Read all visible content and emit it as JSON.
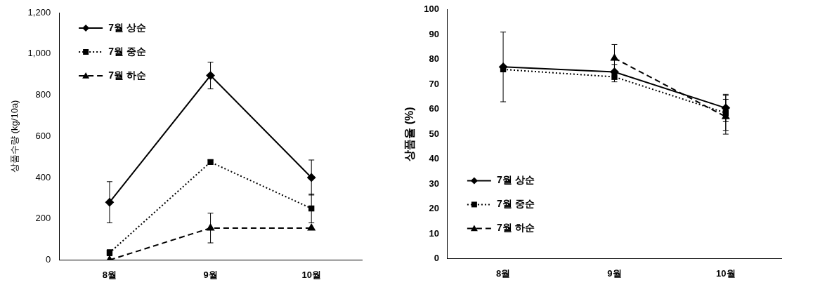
{
  "chart_data": [
    {
      "type": "line",
      "y_label": "상품수량 (kg/10a)",
      "categories": [
        "8월",
        "9월",
        "10월"
      ],
      "series": [
        {
          "name": "7월 상순",
          "color": "#000000",
          "marker": "diamond",
          "line_style": "solid",
          "values": [
            280,
            895,
            400
          ],
          "error": [
            100,
            65,
            85
          ]
        },
        {
          "name": "7월 중순",
          "color": "#000000",
          "marker": "square",
          "line_style": "dotted",
          "values": [
            35,
            475,
            250
          ],
          "error": [
            15,
            10,
            70
          ]
        },
        {
          "name": "7월 하순",
          "color": "#000000",
          "marker": "triangle",
          "line_style": "dashed",
          "values": [
            0,
            155,
            155
          ],
          "error": [
            null,
            72,
            null
          ]
        }
      ],
      "ylim": [
        0,
        1200
      ],
      "yticks": [
        0,
        200,
        400,
        600,
        800,
        {
          "value": 1000,
          "label": "1,000"
        },
        {
          "value": 1200,
          "label": "1,200"
        }
      ],
      "legend": "upper left",
      "grid": false
    },
    {
      "type": "line",
      "y_label": "상품율 (%)",
      "categories": [
        "8월",
        "9월",
        "10월"
      ],
      "series": [
        {
          "name": "7월 상순",
          "color": "#000000",
          "marker": "diamond",
          "line_style": "solid",
          "values": [
            77,
            75,
            60.5
          ],
          "error": [
            14,
            3,
            5.5
          ]
        },
        {
          "name": "7월 중순",
          "color": "#000000",
          "marker": "square",
          "line_style": "dotted",
          "values": [
            76,
            73,
            58.5
          ],
          "error": [
            null,
            2,
            7
          ]
        },
        {
          "name": "7월 하순",
          "color": "#000000",
          "marker": "triangle",
          "line_style": "dashed",
          "values": [
            null,
            80.5,
            57
          ],
          "error": [
            null,
            5.5,
            7
          ]
        }
      ],
      "ylim": [
        0,
        100
      ],
      "yticks": [
        0,
        10,
        20,
        30,
        40,
        50,
        60,
        70,
        80,
        90,
        100
      ],
      "legend": "lower left",
      "grid": false
    }
  ]
}
